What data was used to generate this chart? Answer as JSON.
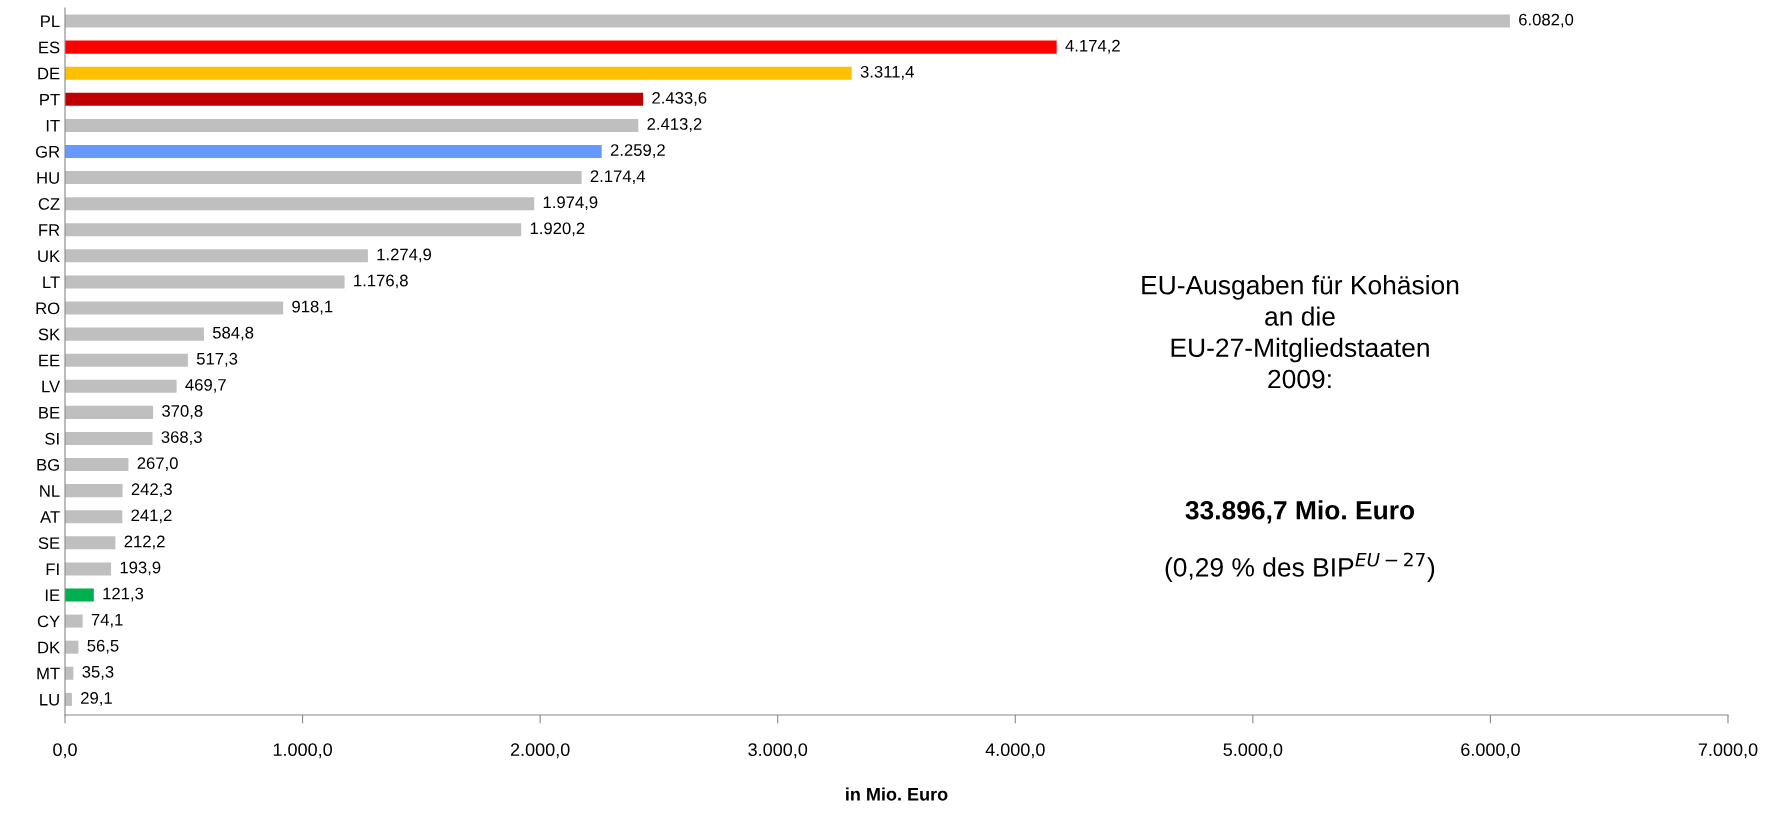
{
  "chart_data": {
    "type": "bar",
    "orientation": "horizontal",
    "xlabel": "in Mio. Euro",
    "categories": [
      "PL",
      "ES",
      "DE",
      "PT",
      "IT",
      "GR",
      "HU",
      "CZ",
      "FR",
      "UK",
      "LT",
      "RO",
      "SK",
      "EE",
      "LV",
      "BE",
      "SI",
      "BG",
      "NL",
      "AT",
      "SE",
      "FI",
      "IE",
      "CY",
      "DK",
      "MT",
      "LU"
    ],
    "values": [
      6082.0,
      4174.2,
      3311.4,
      2433.6,
      2413.2,
      2259.2,
      2174.4,
      1974.9,
      1920.2,
      1274.9,
      1176.8,
      918.1,
      584.8,
      517.3,
      469.7,
      370.8,
      368.3,
      267.0,
      242.3,
      241.2,
      212.2,
      193.9,
      121.3,
      74.1,
      56.5,
      35.3,
      29.1
    ],
    "value_labels": [
      "6.082,0",
      "4.174,2",
      "3.311,4",
      "2.433,6",
      "2.413,2",
      "2.259,2",
      "2.174,4",
      "1.974,9",
      "1.920,2",
      "1.274,9",
      "1.176,8",
      "918,1",
      "584,8",
      "517,3",
      "469,7",
      "370,8",
      "368,3",
      "267,0",
      "242,3",
      "241,2",
      "212,2",
      "193,9",
      "121,3",
      "74,1",
      "56,5",
      "35,3",
      "29,1"
    ],
    "colors": [
      "#bfbfbf",
      "#ff0000",
      "#ffc000",
      "#c00000",
      "#bfbfbf",
      "#6699ff",
      "#bfbfbf",
      "#bfbfbf",
      "#bfbfbf",
      "#bfbfbf",
      "#bfbfbf",
      "#bfbfbf",
      "#bfbfbf",
      "#bfbfbf",
      "#bfbfbf",
      "#bfbfbf",
      "#bfbfbf",
      "#bfbfbf",
      "#bfbfbf",
      "#bfbfbf",
      "#bfbfbf",
      "#bfbfbf",
      "#00b050",
      "#bfbfbf",
      "#bfbfbf",
      "#bfbfbf",
      "#bfbfbf"
    ],
    "xlim": [
      0,
      7000
    ],
    "xticks": [
      {
        "value": 0,
        "label": "0,0"
      },
      {
        "value": 1000,
        "label": "1.000,0"
      },
      {
        "value": 2000,
        "label": "2.000,0"
      },
      {
        "value": 3000,
        "label": "3.000,0"
      },
      {
        "value": 4000,
        "label": "4.000,0"
      },
      {
        "value": 5000,
        "label": "5.000,0"
      },
      {
        "value": 6000,
        "label": "6.000,0"
      },
      {
        "value": 7000,
        "label": "7.000,0"
      }
    ],
    "grid": false,
    "legend": false,
    "annotations": [
      "EU-Ausgaben für Kohäsion\nan die\nEU-27-Mitgliedstaaten\n2009:",
      "33.896,7 Mio. Euro",
      "(0,29 % des BIP$^{EU−27}$)"
    ]
  }
}
